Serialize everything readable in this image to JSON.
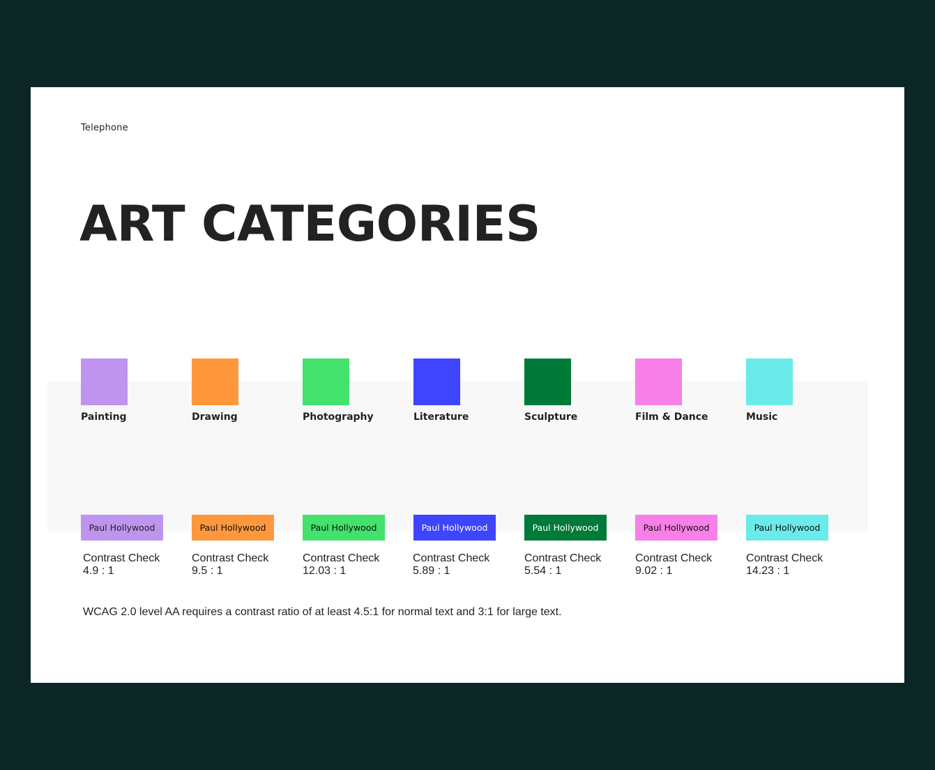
{
  "eyebrow": "Telephone",
  "title": "ART CATEGORIES",
  "categories": [
    {
      "label": "Painting",
      "color": "#bf94ef",
      "sample_text": "Paul Hollywood",
      "sample_text_color": "#222222",
      "check_label": "Contrast Check",
      "ratio": "4.9 : 1"
    },
    {
      "label": "Drawing",
      "color": "#ff983c",
      "sample_text": "Paul Hollywood",
      "sample_text_color": "#111111",
      "check_label": "Contrast Check",
      "ratio": "9.5 : 1"
    },
    {
      "label": "Photography",
      "color": "#42e26c",
      "sample_text": "Paul Hollywood",
      "sample_text_color": "#111111",
      "check_label": "Contrast Check",
      "ratio": "12.03 : 1"
    },
    {
      "label": "Literature",
      "color": "#3f44ff",
      "sample_text": "Paul Hollywood",
      "sample_text_color": "#ffffff",
      "check_label": "Contrast Check",
      "ratio": "5.89 : 1"
    },
    {
      "label": "Sculpture",
      "color": "#007a38",
      "sample_text": "Paul Hollywood",
      "sample_text_color": "#ffffff",
      "check_label": "Contrast Check",
      "ratio": "5.54 : 1"
    },
    {
      "label": "Film & Dance",
      "color": "#f97fe8",
      "sample_text": "Paul Hollywood",
      "sample_text_color": "#111111",
      "check_label": "Contrast Check",
      "ratio": "9.02 : 1"
    },
    {
      "label": "Music",
      "color": "#6aebea",
      "sample_text": "Paul Hollywood",
      "sample_text_color": "#111111",
      "check_label": "Contrast Check",
      "ratio": "14.23 : 1"
    }
  ],
  "note": "WCAG 2.0 level AA requires a contrast ratio of at least 4.5:1 for normal text and 3:1 for large text."
}
